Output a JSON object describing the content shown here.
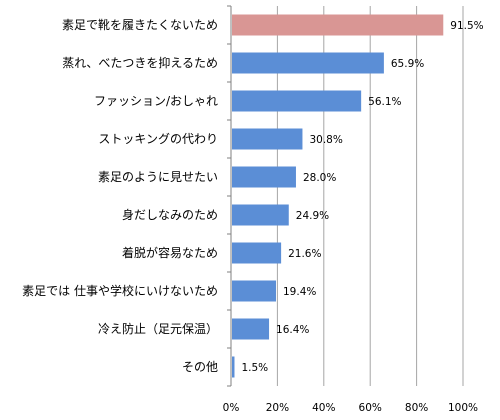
{
  "chart_data": {
    "type": "bar",
    "orientation": "horizontal",
    "categories": [
      "素足で靴を履きたくないため",
      "蒸れ、べたつきを抑えるため",
      "ファッション/おしゃれ",
      "ストッキングの代わり",
      "素足のように見せたい",
      "身だしなみのため",
      "着脱が容易なため",
      "素足では 仕事や学校にいけないため",
      "冷え防止（足元保温）",
      "その他"
    ],
    "values": [
      91.5,
      65.9,
      56.1,
      30.8,
      28.0,
      24.9,
      21.6,
      19.4,
      16.4,
      1.5
    ],
    "value_labels": [
      "91.5%",
      "65.9%",
      "56.1%",
      "30.8%",
      "28.0%",
      "24.9%",
      "21.6%",
      "19.4%",
      "16.4%",
      "1.5%"
    ],
    "xlim": [
      0,
      100
    ],
    "x_ticks": [
      0,
      20,
      40,
      60,
      80,
      100
    ],
    "x_tick_labels": [
      "0%",
      "20%",
      "40%",
      "60%",
      "80%",
      "100%"
    ],
    "grid": true,
    "colors": {
      "bar": "#5b8ed6",
      "highlight": "#d99694",
      "grid": "#a6a6a6",
      "axis": "#808080"
    },
    "highlight_index": 0,
    "title": "",
    "xlabel": "",
    "ylabel": ""
  }
}
